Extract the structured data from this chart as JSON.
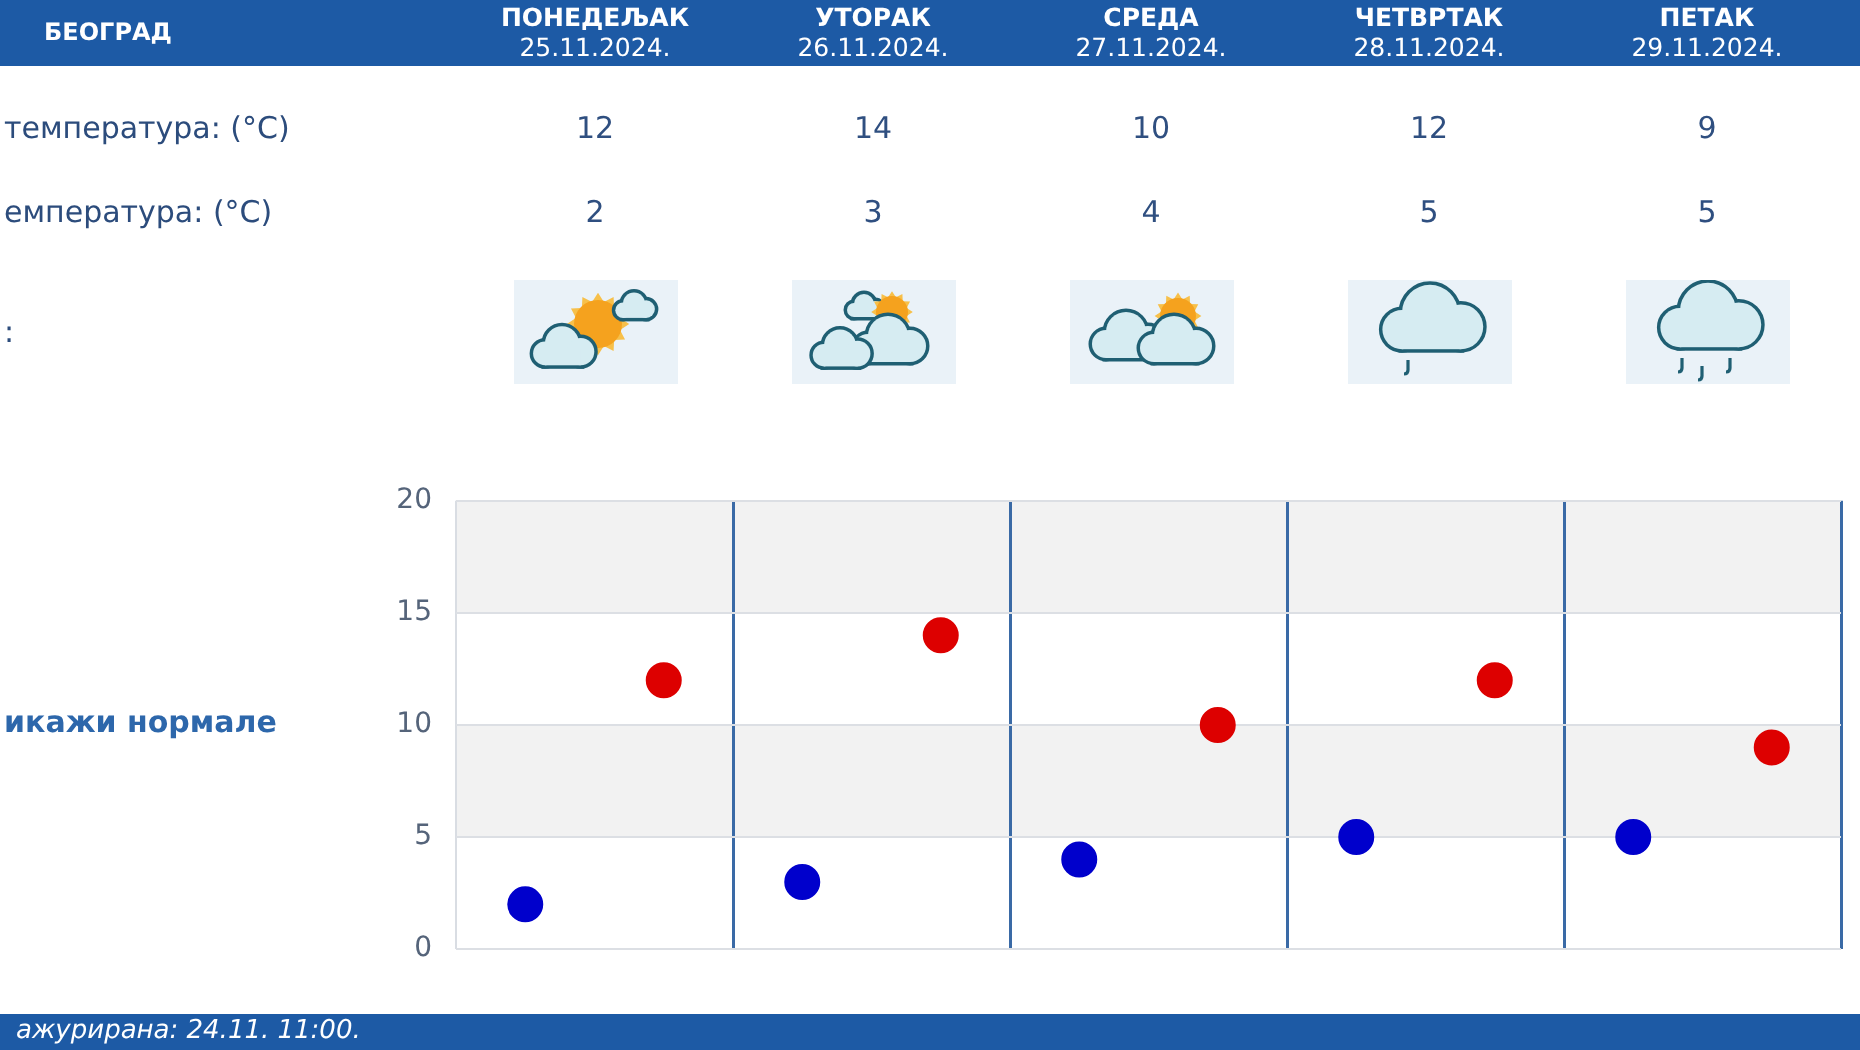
{
  "chart_data": {
    "type": "scatter",
    "title": "БЕОГРАД",
    "categories": [
      null,
      null,
      null,
      null,
      null
    ],
    "series": [
      {
        "color": "#dd0000",
        "values": [
          12,
          14,
          10,
          12,
          9
        ]
      },
      {
        "color": "#0000cc",
        "values": [
          2,
          3,
          4,
          5,
          5
        ]
      }
    ],
    "ylim": [
      0,
      20
    ],
    "yticks": [
      0,
      5,
      10,
      15,
      20
    ],
    "grid": true,
    "tick_labels": "y",
    "bands": [
      {
        "axis": "y",
        "from": 15,
        "to": 20,
        "color": "#f2f2f2"
      },
      {
        "axis": "y",
        "from": 5,
        "to": 10,
        "color": "#f2f2f2"
      }
    ],
    "marker": "circle",
    "data_labels": true,
    "annotations": [
      "ПОНЕДЕЉАК\n25.11.2024.",
      "УТОРАК\n26.11.2024.",
      "СРЕДА\n27.11.2024.",
      "ЧЕТВРТАК\n28.11.2024.",
      "ПЕТАК\n29.11.2024.",
      "температура: (°C)",
      "емпература: (°C)",
      ":",
      "икажи нормале",
      "ажурирана: 24.11. 11:00."
    ]
  }
}
